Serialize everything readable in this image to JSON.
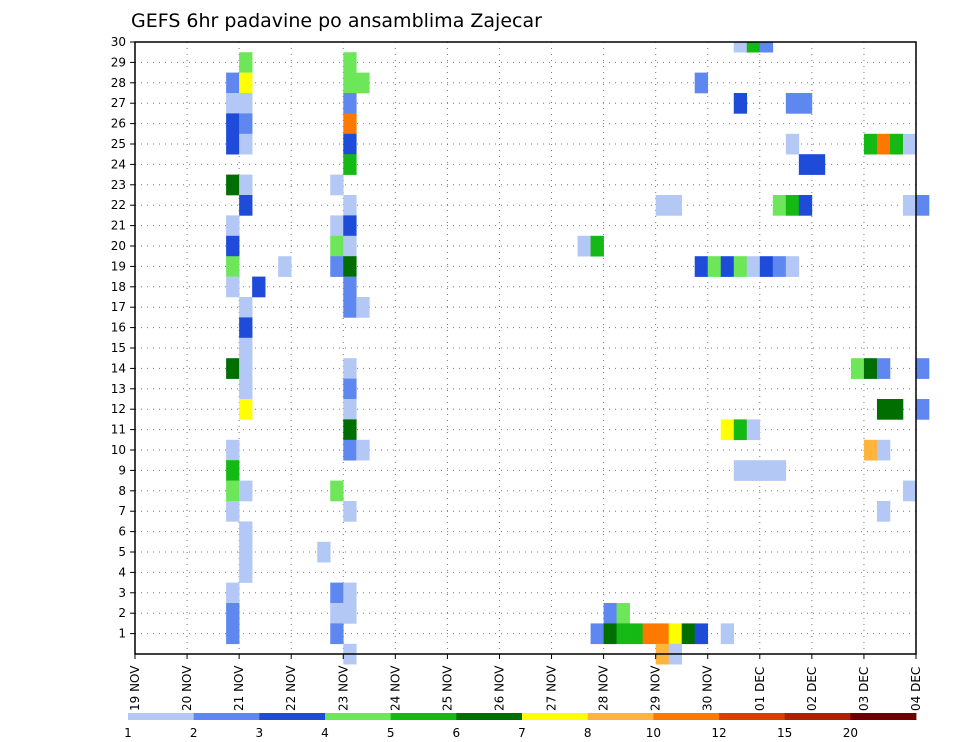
{
  "chart_data": {
    "type": "heatmap",
    "title": "GEFS 6hr padavine po ansamblima Zajecar",
    "xlabel": "",
    "ylabel": "",
    "x_tick_labels": [
      "19 NOV",
      "20 NOV",
      "21 NOV",
      "22 NOV",
      "23 NOV",
      "24 NOV",
      "25 NOV",
      "26 NOV",
      "27 NOV",
      "28 NOV",
      "29 NOV",
      "30 NOV",
      "01 DEC",
      "02 DEC",
      "03 DEC",
      "04 DEC"
    ],
    "x_range_days": [
      0,
      15
    ],
    "y_tick_labels": [
      "1",
      "2",
      "3",
      "4",
      "5",
      "6",
      "7",
      "8",
      "9",
      "10",
      "11",
      "12",
      "13",
      "14",
      "15",
      "16",
      "17",
      "18",
      "19",
      "20",
      "21",
      "22",
      "23",
      "24",
      "25",
      "26",
      "27",
      "28",
      "29",
      "30"
    ],
    "y_range": [
      0,
      30
    ],
    "grid": "dotted",
    "colorbar": {
      "position": "bottom",
      "labels": [
        "1",
        "2",
        "3",
        "4",
        "5",
        "6",
        "7",
        "8",
        "10",
        "12",
        "15",
        "20"
      ],
      "colors": [
        "#b4c8f5",
        "#5f87f0",
        "#1e4bd7",
        "#6ee65a",
        "#14b914",
        "#006e00",
        "#ffff00",
        "#ffb43c",
        "#ff7800",
        "#e13c00",
        "#b41e00",
        "#6e0000"
      ]
    },
    "cell_width_days": 0.25,
    "cells_format": "[member, start_day_offset_from_19NOV00Z, color_class_index]",
    "cells": [
      [
        30,
        11.5,
        0
      ],
      [
        30,
        11.75,
        4
      ],
      [
        30,
        12.0,
        1
      ],
      [
        29,
        2.0,
        3
      ],
      [
        29,
        4.0,
        3
      ],
      [
        28,
        1.75,
        1
      ],
      [
        28,
        2.0,
        6
      ],
      [
        28,
        4.0,
        3
      ],
      [
        28,
        4.25,
        3
      ],
      [
        28,
        10.75,
        1
      ],
      [
        27,
        1.75,
        0
      ],
      [
        27,
        2.0,
        0
      ],
      [
        27,
        4.0,
        1
      ],
      [
        27,
        11.5,
        2
      ],
      [
        27,
        12.5,
        1
      ],
      [
        27,
        12.75,
        1
      ],
      [
        26,
        1.75,
        2
      ],
      [
        26,
        2.0,
        1
      ],
      [
        26,
        4.0,
        8
      ],
      [
        25,
        1.75,
        2
      ],
      [
        25,
        2.0,
        0
      ],
      [
        25,
        4.0,
        2
      ],
      [
        25,
        12.5,
        0
      ],
      [
        25,
        14.0,
        4
      ],
      [
        25,
        14.25,
        8
      ],
      [
        25,
        14.5,
        4
      ],
      [
        25,
        14.75,
        0
      ],
      [
        24,
        4.0,
        4
      ],
      [
        24,
        12.75,
        2
      ],
      [
        24,
        13.0,
        2
      ],
      [
        23,
        1.75,
        5
      ],
      [
        23,
        2.0,
        0
      ],
      [
        23,
        3.75,
        0
      ],
      [
        22,
        2.0,
        2
      ],
      [
        22,
        4.0,
        0
      ],
      [
        22,
        10.0,
        0
      ],
      [
        22,
        10.25,
        0
      ],
      [
        22,
        12.25,
        3
      ],
      [
        22,
        12.5,
        4
      ],
      [
        22,
        12.75,
        2
      ],
      [
        22,
        14.75,
        0
      ],
      [
        22,
        15.0,
        1
      ],
      [
        21,
        1.75,
        0
      ],
      [
        21,
        3.75,
        0
      ],
      [
        21,
        4.0,
        2
      ],
      [
        20,
        1.75,
        2
      ],
      [
        20,
        3.75,
        3
      ],
      [
        20,
        4.0,
        0
      ],
      [
        20,
        8.5,
        0
      ],
      [
        20,
        8.75,
        4
      ],
      [
        19,
        1.75,
        3
      ],
      [
        19,
        2.75,
        0
      ],
      [
        19,
        3.75,
        1
      ],
      [
        19,
        4.0,
        5
      ],
      [
        19,
        10.75,
        2
      ],
      [
        19,
        11.0,
        3
      ],
      [
        19,
        11.25,
        2
      ],
      [
        19,
        11.5,
        3
      ],
      [
        19,
        11.75,
        0
      ],
      [
        19,
        12.0,
        2
      ],
      [
        19,
        12.25,
        1
      ],
      [
        19,
        12.5,
        0
      ],
      [
        18,
        1.75,
        0
      ],
      [
        18,
        2.25,
        2
      ],
      [
        18,
        4.0,
        1
      ],
      [
        17,
        2.0,
        0
      ],
      [
        17,
        4.0,
        1
      ],
      [
        17,
        4.25,
        0
      ],
      [
        16,
        2.0,
        2
      ],
      [
        15,
        2.0,
        0
      ],
      [
        14,
        1.75,
        5
      ],
      [
        14,
        2.0,
        0
      ],
      [
        14,
        4.0,
        0
      ],
      [
        14,
        13.75,
        3
      ],
      [
        14,
        14.0,
        5
      ],
      [
        14,
        14.25,
        1
      ],
      [
        14,
        15.0,
        1
      ],
      [
        13,
        2.0,
        0
      ],
      [
        13,
        4.0,
        1
      ],
      [
        12,
        2.0,
        6
      ],
      [
        12,
        4.0,
        0
      ],
      [
        12,
        14.25,
        5
      ],
      [
        12,
        14.5,
        5
      ],
      [
        12,
        15.0,
        1
      ],
      [
        11,
        4.0,
        5
      ],
      [
        11,
        11.25,
        6
      ],
      [
        11,
        11.5,
        4
      ],
      [
        11,
        11.75,
        0
      ],
      [
        10,
        1.75,
        0
      ],
      [
        10,
        4.0,
        1
      ],
      [
        10,
        4.25,
        0
      ],
      [
        10,
        14.0,
        7
      ],
      [
        10,
        14.25,
        0
      ],
      [
        9,
        1.75,
        4
      ],
      [
        9,
        11.5,
        0
      ],
      [
        9,
        11.75,
        0
      ],
      [
        9,
        12.0,
        0
      ],
      [
        9,
        12.25,
        0
      ],
      [
        8,
        1.75,
        3
      ],
      [
        8,
        2.0,
        0
      ],
      [
        8,
        3.75,
        3
      ],
      [
        8,
        14.75,
        0
      ],
      [
        7,
        1.75,
        0
      ],
      [
        7,
        4.0,
        0
      ],
      [
        7,
        14.25,
        0
      ],
      [
        6,
        2.0,
        0
      ],
      [
        5,
        2.0,
        0
      ],
      [
        5,
        3.5,
        0
      ],
      [
        4,
        2.0,
        0
      ],
      [
        3,
        1.75,
        0
      ],
      [
        3,
        3.75,
        1
      ],
      [
        3,
        4.0,
        0
      ],
      [
        2,
        1.75,
        1
      ],
      [
        2,
        3.75,
        0
      ],
      [
        2,
        4.0,
        0
      ],
      [
        2,
        9.0,
        1
      ],
      [
        2,
        9.25,
        3
      ],
      [
        1,
        1.75,
        1
      ],
      [
        1,
        3.75,
        1
      ],
      [
        1,
        8.75,
        1
      ],
      [
        1,
        9.0,
        5
      ],
      [
        1,
        9.25,
        4
      ],
      [
        1,
        9.5,
        4
      ],
      [
        1,
        9.75,
        8
      ],
      [
        1,
        10.0,
        8
      ],
      [
        1,
        10.25,
        6
      ],
      [
        1,
        10.5,
        5
      ],
      [
        1,
        10.75,
        2
      ],
      [
        1,
        11.25,
        0
      ],
      [
        0,
        4.0,
        0
      ],
      [
        0,
        10.0,
        7
      ],
      [
        0,
        10.25,
        0
      ]
    ]
  }
}
